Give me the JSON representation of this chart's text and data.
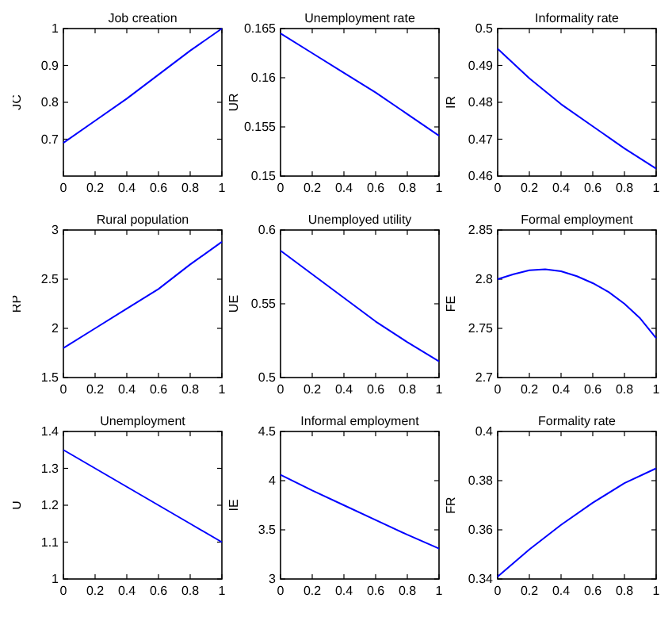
{
  "chart_data": [
    {
      "type": "line",
      "title": "Job creation",
      "ylabel": "JC",
      "x": [
        0,
        0.2,
        0.4,
        0.6,
        0.8,
        1
      ],
      "series": [
        {
          "color": "#0000ff",
          "values": [
            0.69,
            0.75,
            0.81,
            0.875,
            0.94,
            1.0
          ]
        }
      ],
      "xlim": [
        0,
        1
      ],
      "xticks": [
        0,
        0.2,
        0.4,
        0.6,
        0.8,
        1
      ],
      "ylim": [
        0.6,
        1
      ],
      "yticks": [
        0.7,
        0.8,
        0.9,
        1
      ]
    },
    {
      "type": "line",
      "title": "Unemployment rate",
      "ylabel": "UR",
      "x": [
        0,
        0.2,
        0.4,
        0.6,
        0.8,
        1
      ],
      "series": [
        {
          "color": "#0000ff",
          "values": [
            0.1645,
            0.1625,
            0.1605,
            0.1585,
            0.1563,
            0.1541
          ]
        }
      ],
      "xlim": [
        0,
        1
      ],
      "xticks": [
        0,
        0.2,
        0.4,
        0.6,
        0.8,
        1
      ],
      "ylim": [
        0.15,
        0.165
      ],
      "yticks": [
        0.15,
        0.155,
        0.16,
        0.165
      ]
    },
    {
      "type": "line",
      "title": "Informality rate",
      "ylabel": "IR",
      "x": [
        0,
        0.2,
        0.4,
        0.6,
        0.8,
        1
      ],
      "series": [
        {
          "color": "#0000ff",
          "values": [
            0.4945,
            0.4865,
            0.4795,
            0.4735,
            0.4675,
            0.462
          ]
        }
      ],
      "xlim": [
        0,
        1
      ],
      "xticks": [
        0,
        0.2,
        0.4,
        0.6,
        0.8,
        1
      ],
      "ylim": [
        0.46,
        0.5
      ],
      "yticks": [
        0.46,
        0.47,
        0.48,
        0.49,
        0.5
      ]
    },
    {
      "type": "line",
      "title": "Rural population",
      "ylabel": "RP",
      "x": [
        0,
        0.2,
        0.4,
        0.6,
        0.8,
        1
      ],
      "series": [
        {
          "color": "#0000ff",
          "values": [
            1.8,
            2.0,
            2.2,
            2.4,
            2.65,
            2.88
          ]
        }
      ],
      "xlim": [
        0,
        1
      ],
      "xticks": [
        0,
        0.2,
        0.4,
        0.6,
        0.8,
        1
      ],
      "ylim": [
        1.5,
        3
      ],
      "yticks": [
        1.5,
        2,
        2.5,
        3
      ]
    },
    {
      "type": "line",
      "title": "Unemployed utility",
      "ylabel": "UE",
      "x": [
        0,
        0.2,
        0.4,
        0.6,
        0.8,
        1
      ],
      "series": [
        {
          "color": "#0000ff",
          "values": [
            0.586,
            0.57,
            0.554,
            0.538,
            0.524,
            0.511
          ]
        }
      ],
      "xlim": [
        0,
        1
      ],
      "xticks": [
        0,
        0.2,
        0.4,
        0.6,
        0.8,
        1
      ],
      "ylim": [
        0.5,
        0.6
      ],
      "yticks": [
        0.5,
        0.55,
        0.6
      ]
    },
    {
      "type": "line",
      "title": "Formal employment",
      "ylabel": "FE",
      "x": [
        0,
        0.1,
        0.2,
        0.3,
        0.4,
        0.5,
        0.6,
        0.7,
        0.8,
        0.9,
        1
      ],
      "series": [
        {
          "color": "#0000ff",
          "values": [
            2.8,
            2.805,
            2.809,
            2.81,
            2.808,
            2.803,
            2.796,
            2.787,
            2.775,
            2.76,
            2.74
          ]
        }
      ],
      "xlim": [
        0,
        1
      ],
      "xticks": [
        0,
        0.2,
        0.4,
        0.6,
        0.8,
        1
      ],
      "ylim": [
        2.7,
        2.85
      ],
      "yticks": [
        2.7,
        2.75,
        2.8,
        2.85
      ]
    },
    {
      "type": "line",
      "title": "Unemployment",
      "ylabel": "U",
      "x": [
        0,
        0.2,
        0.4,
        0.6,
        0.8,
        1
      ],
      "series": [
        {
          "color": "#0000ff",
          "values": [
            1.35,
            1.3,
            1.25,
            1.2,
            1.15,
            1.1
          ]
        }
      ],
      "xlim": [
        0,
        1
      ],
      "xticks": [
        0,
        0.2,
        0.4,
        0.6,
        0.8,
        1
      ],
      "ylim": [
        1,
        1.4
      ],
      "yticks": [
        1,
        1.1,
        1.2,
        1.3,
        1.4
      ]
    },
    {
      "type": "line",
      "title": "Informal employment",
      "ylabel": "IE",
      "x": [
        0,
        0.2,
        0.4,
        0.6,
        0.8,
        1
      ],
      "series": [
        {
          "color": "#0000ff",
          "values": [
            4.06,
            3.9,
            3.75,
            3.6,
            3.45,
            3.31
          ]
        }
      ],
      "xlim": [
        0,
        1
      ],
      "xticks": [
        0,
        0.2,
        0.4,
        0.6,
        0.8,
        1
      ],
      "ylim": [
        3,
        4.5
      ],
      "yticks": [
        3,
        3.5,
        4,
        4.5
      ]
    },
    {
      "type": "line",
      "title": "Formality rate",
      "ylabel": "FR",
      "x": [
        0,
        0.2,
        0.4,
        0.6,
        0.8,
        1
      ],
      "series": [
        {
          "color": "#0000ff",
          "values": [
            0.341,
            0.352,
            0.362,
            0.371,
            0.379,
            0.385
          ]
        }
      ],
      "xlim": [
        0,
        1
      ],
      "xticks": [
        0,
        0.2,
        0.4,
        0.6,
        0.8,
        1
      ],
      "ylim": [
        0.34,
        0.4
      ],
      "yticks": [
        0.34,
        0.36,
        0.38,
        0.4
      ]
    }
  ]
}
